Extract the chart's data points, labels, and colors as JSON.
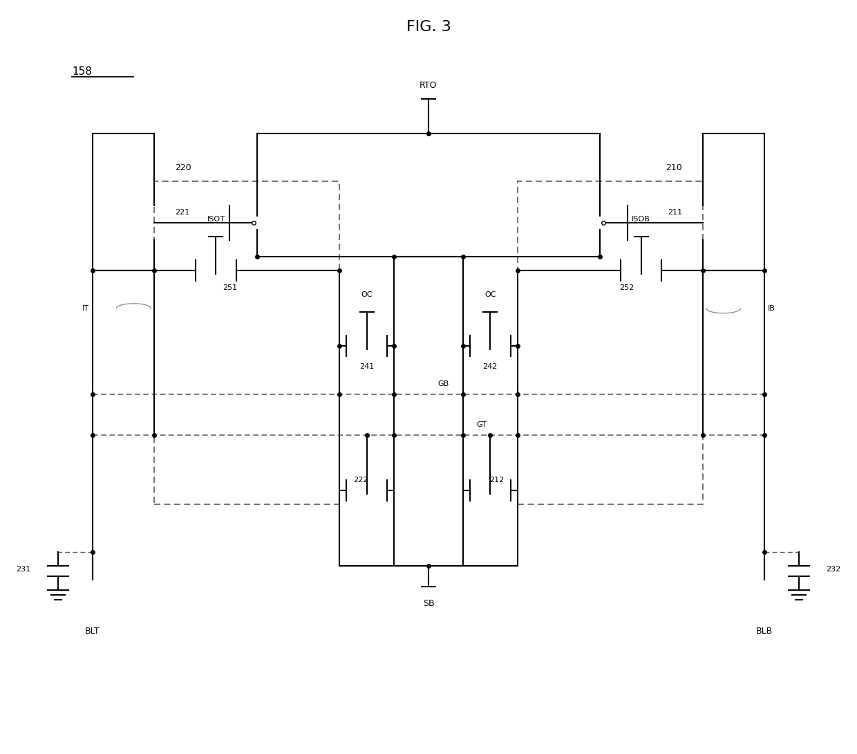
{
  "title": "FIG. 3",
  "label_158": "158",
  "label_220": "220",
  "label_210": "210",
  "label_221": "221",
  "label_211": "211",
  "label_222": "222",
  "label_212": "212",
  "label_241": "241",
  "label_242": "242",
  "label_251": "251",
  "label_252": "252",
  "label_231": "231",
  "label_232": "232",
  "label_RTO": "RTO",
  "label_ISOT": "ISOT",
  "label_ISOB": "ISOB",
  "label_OC": "OC",
  "label_GB": "GB",
  "label_GT": "GT",
  "label_SB": "SB",
  "label_BLT": "BLT",
  "label_BLB": "BLB",
  "label_IT": "IT",
  "label_IB": "IB",
  "bg_color": "#ffffff",
  "line_color": "#000000"
}
